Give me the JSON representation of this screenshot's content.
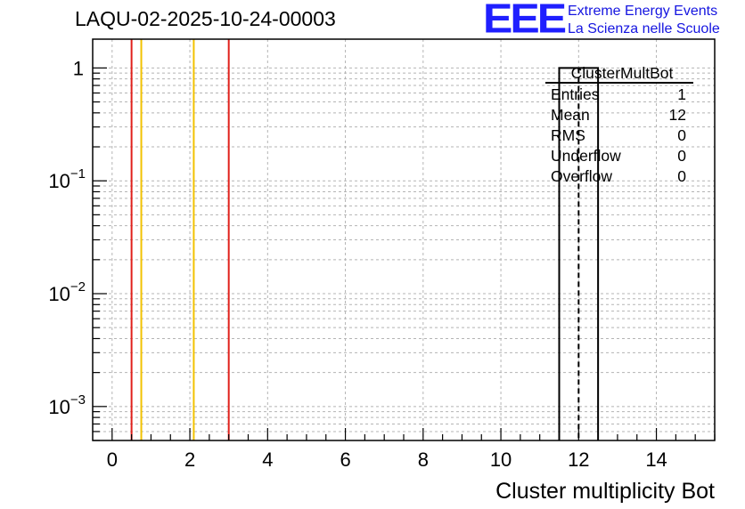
{
  "header": {
    "run_title": "LAQU-02-2025-10-24-00003",
    "logo_text": "EEE",
    "logo_line1": "Extreme Energy Events",
    "logo_line2": "La Scienza nelle Scuole"
  },
  "stats_box": {
    "title": "ClusterMultBot",
    "rows": [
      {
        "label": "Entries",
        "value": "1"
      },
      {
        "label": "Mean",
        "value": "12"
      },
      {
        "label": "RMS",
        "value": "0"
      },
      {
        "label": "Underflow",
        "value": "0"
      },
      {
        "label": "Overflow",
        "value": "0"
      }
    ]
  },
  "colors": {
    "red_line": "#e0201b",
    "yellow_line": "#f2c200",
    "grid": "#b4b4b4",
    "axis": "#000000",
    "logo": "#1f1fff"
  },
  "chart_data": {
    "type": "bar",
    "title": "LAQU-02-2025-10-24-00003",
    "xlabel": "Cluster multiplicity Bot",
    "ylabel": "",
    "xlim": [
      -0.5,
      15.5
    ],
    "ylim": [
      0.0005,
      1.8
    ],
    "yscale": "log",
    "grid": true,
    "x_ticks": [
      "0",
      "2",
      "4",
      "6",
      "8",
      "10",
      "12",
      "14"
    ],
    "x_tick_values": [
      0,
      2,
      4,
      6,
      8,
      10,
      12,
      14
    ],
    "y_ticks": [
      {
        "value": 1,
        "base": "1",
        "exp": ""
      },
      {
        "value": 0.1,
        "base": "10",
        "exp": "−1"
      },
      {
        "value": 0.01,
        "base": "10",
        "exp": "−2"
      },
      {
        "value": 0.001,
        "base": "10",
        "exp": "−3"
      }
    ],
    "bins": [
      {
        "low": 11.5,
        "high": 12.5,
        "value": 1
      }
    ],
    "mean_line": 12,
    "vertical_lines": [
      {
        "x": 0.5,
        "color": "red"
      },
      {
        "x": 0.75,
        "color": "yellow"
      },
      {
        "x": 2.1,
        "color": "yellow"
      },
      {
        "x": 3.0,
        "color": "red"
      }
    ]
  }
}
